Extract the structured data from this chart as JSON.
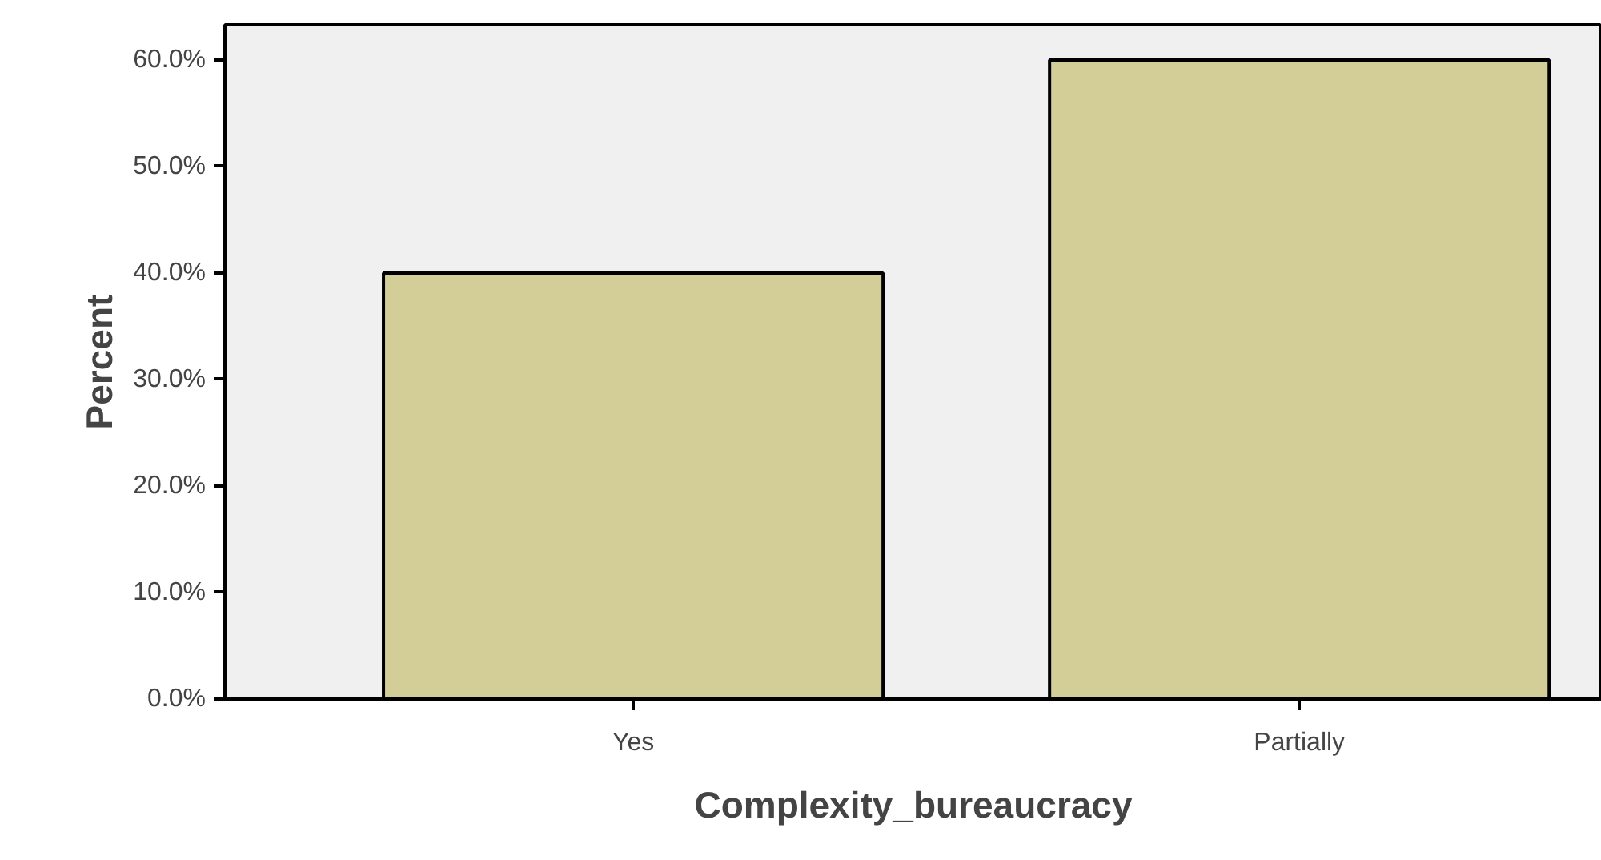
{
  "chart_data": {
    "type": "bar",
    "xlabel": "Complexity_bureaucracy",
    "ylabel": "Percent",
    "categories": [
      "Yes",
      "Partially"
    ],
    "values": [
      40.0,
      60.0
    ],
    "color": "#d3cd97",
    "ylim": [
      0,
      63.3
    ],
    "yticks": [
      {
        "value": 0,
        "label": "0.0%"
      },
      {
        "value": 10,
        "label": "10.0%"
      },
      {
        "value": 20,
        "label": "20.0%"
      },
      {
        "value": 30,
        "label": "30.0%"
      },
      {
        "value": 40,
        "label": "40.0%"
      },
      {
        "value": 50,
        "label": "50.0%"
      },
      {
        "value": 60,
        "label": "60.0%"
      }
    ]
  }
}
